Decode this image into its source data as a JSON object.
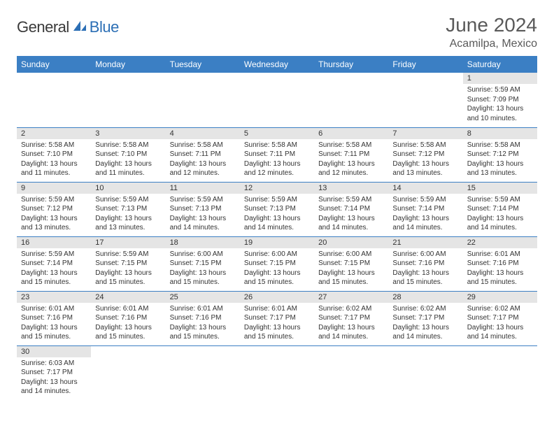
{
  "logo": {
    "general": "General",
    "blue": "Blue"
  },
  "title": "June 2024",
  "location": "Acamilpa, Mexico",
  "colors": {
    "header_bg": "#3b7fc4",
    "header_text": "#ffffff",
    "daynum_bg": "#e5e5e5",
    "border": "#3b7fc4",
    "title_text": "#5a5a5a",
    "logo_blue": "#2c6fb5",
    "logo_gray": "#3a3a3a"
  },
  "weekdays": [
    "Sunday",
    "Monday",
    "Tuesday",
    "Wednesday",
    "Thursday",
    "Friday",
    "Saturday"
  ],
  "weeks": [
    [
      null,
      null,
      null,
      null,
      null,
      null,
      {
        "n": "1",
        "sr": "Sunrise: 5:59 AM",
        "ss": "Sunset: 7:09 PM",
        "d1": "Daylight: 13 hours",
        "d2": "and 10 minutes."
      }
    ],
    [
      {
        "n": "2",
        "sr": "Sunrise: 5:58 AM",
        "ss": "Sunset: 7:10 PM",
        "d1": "Daylight: 13 hours",
        "d2": "and 11 minutes."
      },
      {
        "n": "3",
        "sr": "Sunrise: 5:58 AM",
        "ss": "Sunset: 7:10 PM",
        "d1": "Daylight: 13 hours",
        "d2": "and 11 minutes."
      },
      {
        "n": "4",
        "sr": "Sunrise: 5:58 AM",
        "ss": "Sunset: 7:11 PM",
        "d1": "Daylight: 13 hours",
        "d2": "and 12 minutes."
      },
      {
        "n": "5",
        "sr": "Sunrise: 5:58 AM",
        "ss": "Sunset: 7:11 PM",
        "d1": "Daylight: 13 hours",
        "d2": "and 12 minutes."
      },
      {
        "n": "6",
        "sr": "Sunrise: 5:58 AM",
        "ss": "Sunset: 7:11 PM",
        "d1": "Daylight: 13 hours",
        "d2": "and 12 minutes."
      },
      {
        "n": "7",
        "sr": "Sunrise: 5:58 AM",
        "ss": "Sunset: 7:12 PM",
        "d1": "Daylight: 13 hours",
        "d2": "and 13 minutes."
      },
      {
        "n": "8",
        "sr": "Sunrise: 5:58 AM",
        "ss": "Sunset: 7:12 PM",
        "d1": "Daylight: 13 hours",
        "d2": "and 13 minutes."
      }
    ],
    [
      {
        "n": "9",
        "sr": "Sunrise: 5:59 AM",
        "ss": "Sunset: 7:12 PM",
        "d1": "Daylight: 13 hours",
        "d2": "and 13 minutes."
      },
      {
        "n": "10",
        "sr": "Sunrise: 5:59 AM",
        "ss": "Sunset: 7:13 PM",
        "d1": "Daylight: 13 hours",
        "d2": "and 13 minutes."
      },
      {
        "n": "11",
        "sr": "Sunrise: 5:59 AM",
        "ss": "Sunset: 7:13 PM",
        "d1": "Daylight: 13 hours",
        "d2": "and 14 minutes."
      },
      {
        "n": "12",
        "sr": "Sunrise: 5:59 AM",
        "ss": "Sunset: 7:13 PM",
        "d1": "Daylight: 13 hours",
        "d2": "and 14 minutes."
      },
      {
        "n": "13",
        "sr": "Sunrise: 5:59 AM",
        "ss": "Sunset: 7:14 PM",
        "d1": "Daylight: 13 hours",
        "d2": "and 14 minutes."
      },
      {
        "n": "14",
        "sr": "Sunrise: 5:59 AM",
        "ss": "Sunset: 7:14 PM",
        "d1": "Daylight: 13 hours",
        "d2": "and 14 minutes."
      },
      {
        "n": "15",
        "sr": "Sunrise: 5:59 AM",
        "ss": "Sunset: 7:14 PM",
        "d1": "Daylight: 13 hours",
        "d2": "and 14 minutes."
      }
    ],
    [
      {
        "n": "16",
        "sr": "Sunrise: 5:59 AM",
        "ss": "Sunset: 7:14 PM",
        "d1": "Daylight: 13 hours",
        "d2": "and 15 minutes."
      },
      {
        "n": "17",
        "sr": "Sunrise: 5:59 AM",
        "ss": "Sunset: 7:15 PM",
        "d1": "Daylight: 13 hours",
        "d2": "and 15 minutes."
      },
      {
        "n": "18",
        "sr": "Sunrise: 6:00 AM",
        "ss": "Sunset: 7:15 PM",
        "d1": "Daylight: 13 hours",
        "d2": "and 15 minutes."
      },
      {
        "n": "19",
        "sr": "Sunrise: 6:00 AM",
        "ss": "Sunset: 7:15 PM",
        "d1": "Daylight: 13 hours",
        "d2": "and 15 minutes."
      },
      {
        "n": "20",
        "sr": "Sunrise: 6:00 AM",
        "ss": "Sunset: 7:15 PM",
        "d1": "Daylight: 13 hours",
        "d2": "and 15 minutes."
      },
      {
        "n": "21",
        "sr": "Sunrise: 6:00 AM",
        "ss": "Sunset: 7:16 PM",
        "d1": "Daylight: 13 hours",
        "d2": "and 15 minutes."
      },
      {
        "n": "22",
        "sr": "Sunrise: 6:01 AM",
        "ss": "Sunset: 7:16 PM",
        "d1": "Daylight: 13 hours",
        "d2": "and 15 minutes."
      }
    ],
    [
      {
        "n": "23",
        "sr": "Sunrise: 6:01 AM",
        "ss": "Sunset: 7:16 PM",
        "d1": "Daylight: 13 hours",
        "d2": "and 15 minutes."
      },
      {
        "n": "24",
        "sr": "Sunrise: 6:01 AM",
        "ss": "Sunset: 7:16 PM",
        "d1": "Daylight: 13 hours",
        "d2": "and 15 minutes."
      },
      {
        "n": "25",
        "sr": "Sunrise: 6:01 AM",
        "ss": "Sunset: 7:16 PM",
        "d1": "Daylight: 13 hours",
        "d2": "and 15 minutes."
      },
      {
        "n": "26",
        "sr": "Sunrise: 6:01 AM",
        "ss": "Sunset: 7:17 PM",
        "d1": "Daylight: 13 hours",
        "d2": "and 15 minutes."
      },
      {
        "n": "27",
        "sr": "Sunrise: 6:02 AM",
        "ss": "Sunset: 7:17 PM",
        "d1": "Daylight: 13 hours",
        "d2": "and 14 minutes."
      },
      {
        "n": "28",
        "sr": "Sunrise: 6:02 AM",
        "ss": "Sunset: 7:17 PM",
        "d1": "Daylight: 13 hours",
        "d2": "and 14 minutes."
      },
      {
        "n": "29",
        "sr": "Sunrise: 6:02 AM",
        "ss": "Sunset: 7:17 PM",
        "d1": "Daylight: 13 hours",
        "d2": "and 14 minutes."
      }
    ],
    [
      {
        "n": "30",
        "sr": "Sunrise: 6:03 AM",
        "ss": "Sunset: 7:17 PM",
        "d1": "Daylight: 13 hours",
        "d2": "and 14 minutes."
      },
      null,
      null,
      null,
      null,
      null,
      null
    ]
  ]
}
